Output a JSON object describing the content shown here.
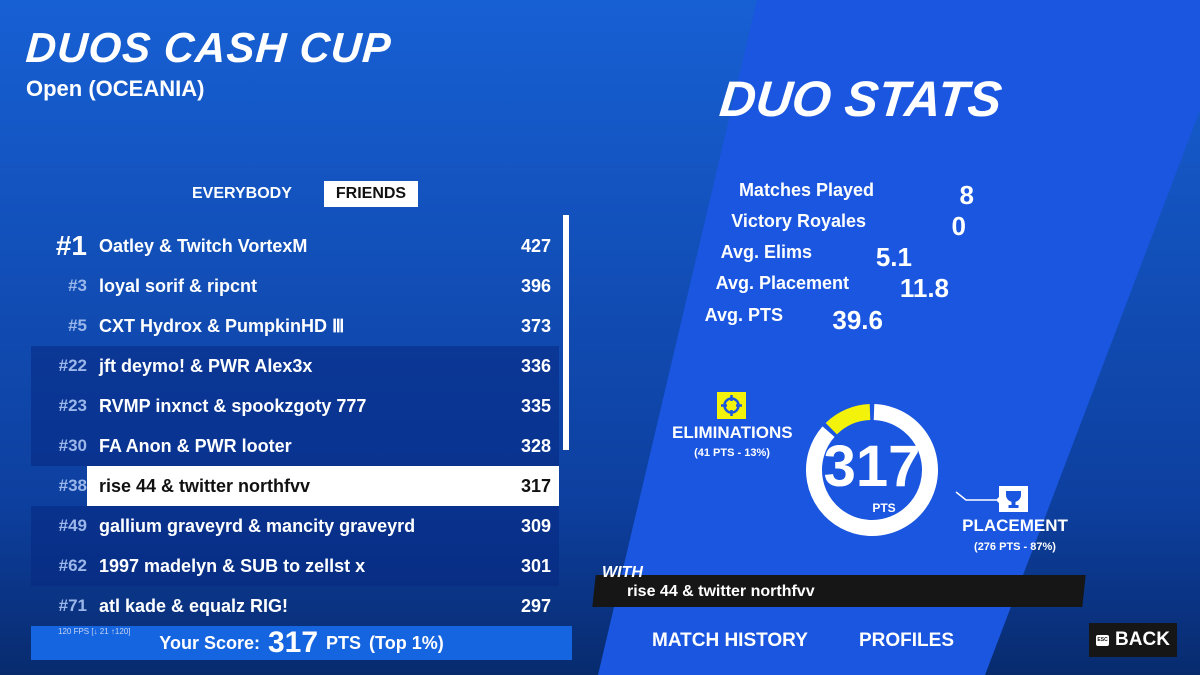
{
  "header": {
    "title": "DUOS CASH CUP",
    "subtitle": "Open (OCEANIA)"
  },
  "tabs": [
    {
      "label": "EVERYBODY",
      "active": false
    },
    {
      "label": "FRIENDS",
      "active": true
    }
  ],
  "leaderboard": [
    {
      "rank": "#1",
      "name": "Oatley & Twitch VortexM",
      "points": "427"
    },
    {
      "rank": "#3",
      "name": "loyal sorif & ripcnt",
      "points": "396"
    },
    {
      "rank": "#5",
      "name": "CXT Hydrox & PumpkinHD Ⅲ",
      "points": "373"
    },
    {
      "rank": "#22",
      "name": "jft deymo! & PWR Alex3x",
      "points": "336"
    },
    {
      "rank": "#23",
      "name": "RVMP inxnct & spookzgoty 777",
      "points": "335"
    },
    {
      "rank": "#30",
      "name": "FA Anon & PWR looter",
      "points": "328"
    },
    {
      "rank": "#38",
      "name": "rise 44 & twitter northfvv",
      "points": "317",
      "highlighted": true
    },
    {
      "rank": "#49",
      "name": "gallium graveyrd & mancity graveyrd",
      "points": "309"
    },
    {
      "rank": "#62",
      "name": "1997 madelyn & SUB to zellst x",
      "points": "301"
    },
    {
      "rank": "#71",
      "name": "atl kade & equalz RIG!",
      "points": "297"
    }
  ],
  "fps": "120 FPS [↓ 21 ↑120]",
  "score": {
    "label": "Your Score:",
    "value": "317",
    "unit": "PTS",
    "rank": "(Top 1%)"
  },
  "duo_stats": {
    "title": "DUO STATS",
    "stats": [
      {
        "label": "Matches Played",
        "value": "8"
      },
      {
        "label": "Victory Royales",
        "value": "0"
      },
      {
        "label": "Avg. Elims",
        "value": "5.1"
      },
      {
        "label": "Avg. PTS",
        "value": "39.6"
      },
      {
        "label": "Avg. Placement",
        "value": "11.8"
      }
    ]
  },
  "chart_data": {
    "type": "pie",
    "total": "317",
    "total_unit": "PTS",
    "series": [
      {
        "name": "ELIMINATIONS",
        "detail": "(41 PTS - 13%)",
        "value": 41,
        "color": "#f2f20a",
        "icon": "crosshair-icon"
      },
      {
        "name": "PLACEMENT",
        "detail": "(276 PTS - 87%)",
        "value": 276,
        "color": "#ffffff",
        "icon": "trophy-icon"
      }
    ]
  },
  "with": {
    "label": "WITH",
    "name": "rise 44 & twitter northfvv"
  },
  "nav": {
    "match_history": "MATCH HISTORY",
    "profiles": "PROFILES",
    "back": "BACK",
    "esc": "ESC"
  },
  "colors": {
    "accent": "#f2f20a",
    "panel": "#1a5be0",
    "bar": "#161616"
  }
}
